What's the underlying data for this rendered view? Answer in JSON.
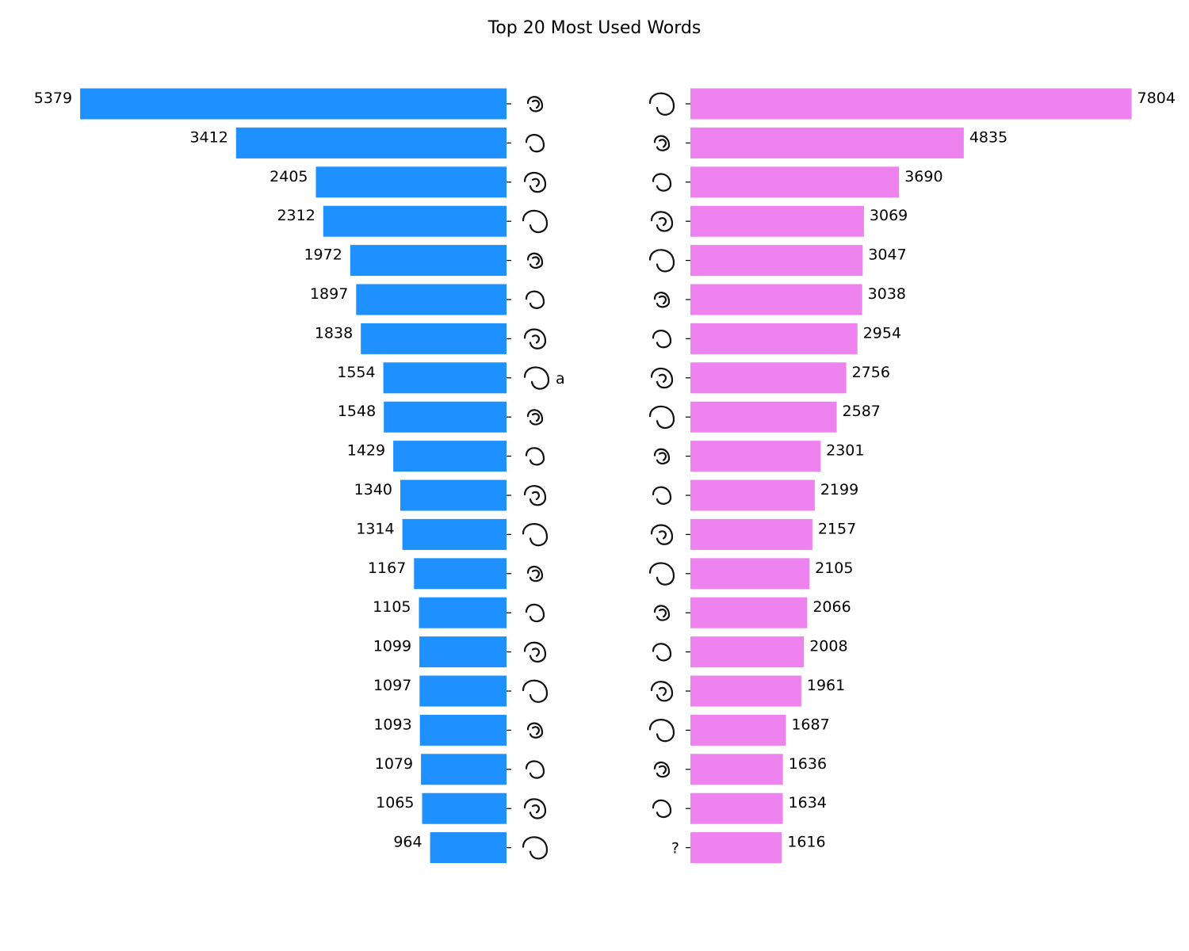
{
  "chart_data": {
    "title": "Top 20 Most Used Words",
    "type": "bar",
    "orientation": "horizontal-butterfly",
    "grid": false,
    "legend": "none",
    "panels": [
      {
        "side": "left",
        "color": "#1e90ff",
        "xlim": [
          0,
          5950
        ],
        "values": [
          5379,
          3412,
          2405,
          2312,
          1972,
          1897,
          1838,
          1554,
          1548,
          1429,
          1340,
          1314,
          1167,
          1105,
          1099,
          1097,
          1093,
          1079,
          1065,
          964
        ],
        "tick_labels": [
          "",
          "",
          "",
          "",
          "",
          "",
          "",
          "a",
          "",
          "",
          "",
          "",
          "",
          "",
          "",
          "",
          "",
          "",
          "",
          ""
        ]
      },
      {
        "side": "right",
        "color": "#ee82ee",
        "xlim": [
          0,
          8300
        ],
        "values": [
          7804,
          4835,
          3690,
          3069,
          3047,
          3038,
          2954,
          2756,
          2587,
          2301,
          2199,
          2157,
          2105,
          2066,
          2008,
          1961,
          1687,
          1636,
          1634,
          1616
        ],
        "tick_labels": [
          "",
          "",
          "",
          "",
          "",
          "",
          "",
          "",
          "",
          "",
          "",
          "",
          "",
          "",
          "",
          "",
          "",
          "",
          "",
          "?"
        ]
      }
    ]
  }
}
